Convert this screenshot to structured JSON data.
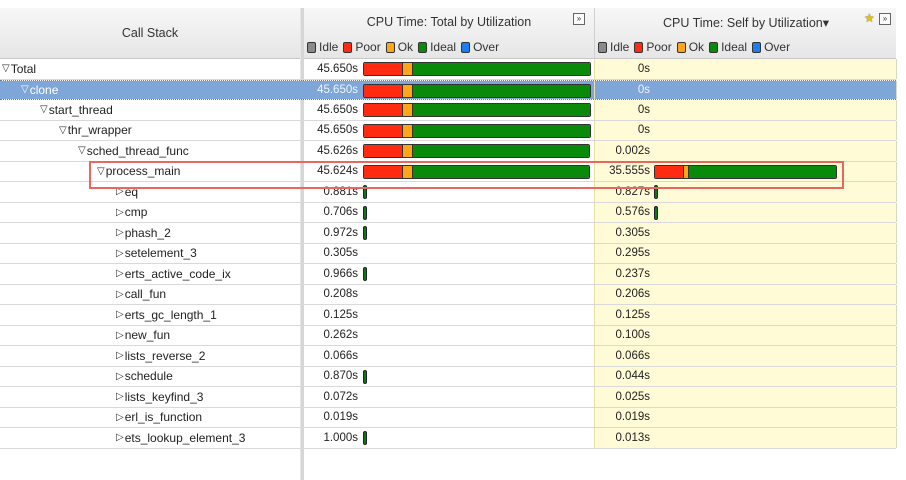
{
  "header": {
    "call_stack": "Call Stack",
    "total_title": "CPU Time: Total by Utilization",
    "self_title": "CPU Time: Self by Utilization",
    "expand_icon": "»",
    "star_icon": "★",
    "sort_indicator": "▾"
  },
  "legend": [
    {
      "label": "Idle",
      "color": "#8a8a8a"
    },
    {
      "label": "Poor",
      "color": "#ff2a0f"
    },
    {
      "label": "Ok",
      "color": "#ffa51a"
    },
    {
      "label": "Ideal",
      "color": "#0a8a0a"
    },
    {
      "label": "Over",
      "color": "#1a7ef5"
    }
  ],
  "colors": {
    "poor": "#ff2a0f",
    "ok": "#ffa51a",
    "ideal": "#0a8a0a",
    "selected_row": "#7ea6d8",
    "self_column_bg": "#fffbd6",
    "highlight_box": "#e8675e"
  },
  "rows": [
    {
      "name": "Total",
      "indent": 0,
      "expander": "▽",
      "total": "45.650s",
      "self": "0s",
      "total_bar": [
        38,
        10,
        178
      ],
      "self_bar": null,
      "total_tiny": false,
      "self_tiny": false
    },
    {
      "name": "clone",
      "indent": 1,
      "expander": "▽",
      "total": "45.650s",
      "self": "0s",
      "total_bar": [
        38,
        10,
        178
      ],
      "self_bar": null,
      "selected": true
    },
    {
      "name": "start_thread",
      "indent": 2,
      "expander": "▽",
      "total": "45.650s",
      "self": "0s",
      "total_bar": [
        38,
        10,
        178
      ],
      "self_bar": null
    },
    {
      "name": "thr_wrapper",
      "indent": 3,
      "expander": "▽",
      "total": "45.650s",
      "self": "0s",
      "total_bar": [
        38,
        10,
        178
      ],
      "self_bar": null
    },
    {
      "name": "sched_thread_func",
      "indent": 4,
      "expander": "▽",
      "total": "45.626s",
      "self": "0.002s",
      "total_bar": [
        38,
        10,
        177
      ],
      "self_bar": null
    },
    {
      "name": "process_main",
      "indent": 5,
      "expander": "▽",
      "total": "45.624s",
      "self": "35.555s",
      "total_bar": [
        38,
        10,
        177
      ],
      "self_bar": [
        28,
        5,
        148
      ],
      "highlighted": true
    },
    {
      "name": "eq",
      "indent": 6,
      "expander": "▷",
      "total": "0.881s",
      "self": "0.827s",
      "total_tiny": true,
      "self_tiny": true
    },
    {
      "name": "cmp",
      "indent": 6,
      "expander": "▷",
      "total": "0.706s",
      "self": "0.576s",
      "total_tiny": true,
      "self_tiny": true
    },
    {
      "name": "phash_2",
      "indent": 6,
      "expander": "▷",
      "total": "0.972s",
      "self": "0.305s",
      "total_tiny": true,
      "self_tiny": false
    },
    {
      "name": "setelement_3",
      "indent": 6,
      "expander": "▷",
      "total": "0.305s",
      "self": "0.295s"
    },
    {
      "name": "erts_active_code_ix",
      "indent": 6,
      "expander": "▷",
      "total": "0.966s",
      "self": "0.237s",
      "total_tiny": true
    },
    {
      "name": "call_fun",
      "indent": 6,
      "expander": "▷",
      "total": "0.208s",
      "self": "0.206s"
    },
    {
      "name": "erts_gc_length_1",
      "indent": 6,
      "expander": "▷",
      "total": "0.125s",
      "self": "0.125s"
    },
    {
      "name": "new_fun",
      "indent": 6,
      "expander": "▷",
      "total": "0.262s",
      "self": "0.100s"
    },
    {
      "name": "lists_reverse_2",
      "indent": 6,
      "expander": "▷",
      "total": "0.066s",
      "self": "0.066s"
    },
    {
      "name": "schedule",
      "indent": 6,
      "expander": "▷",
      "total": "0.870s",
      "self": "0.044s",
      "total_tiny": true
    },
    {
      "name": "lists_keyfind_3",
      "indent": 6,
      "expander": "▷",
      "total": "0.072s",
      "self": "0.025s"
    },
    {
      "name": "erl_is_function",
      "indent": 6,
      "expander": "▷",
      "total": "0.019s",
      "self": "0.019s"
    },
    {
      "name": "ets_lookup_element_3",
      "indent": 6,
      "expander": "▷",
      "total": "1.000s",
      "self": "0.013s",
      "total_tiny": true
    }
  ]
}
